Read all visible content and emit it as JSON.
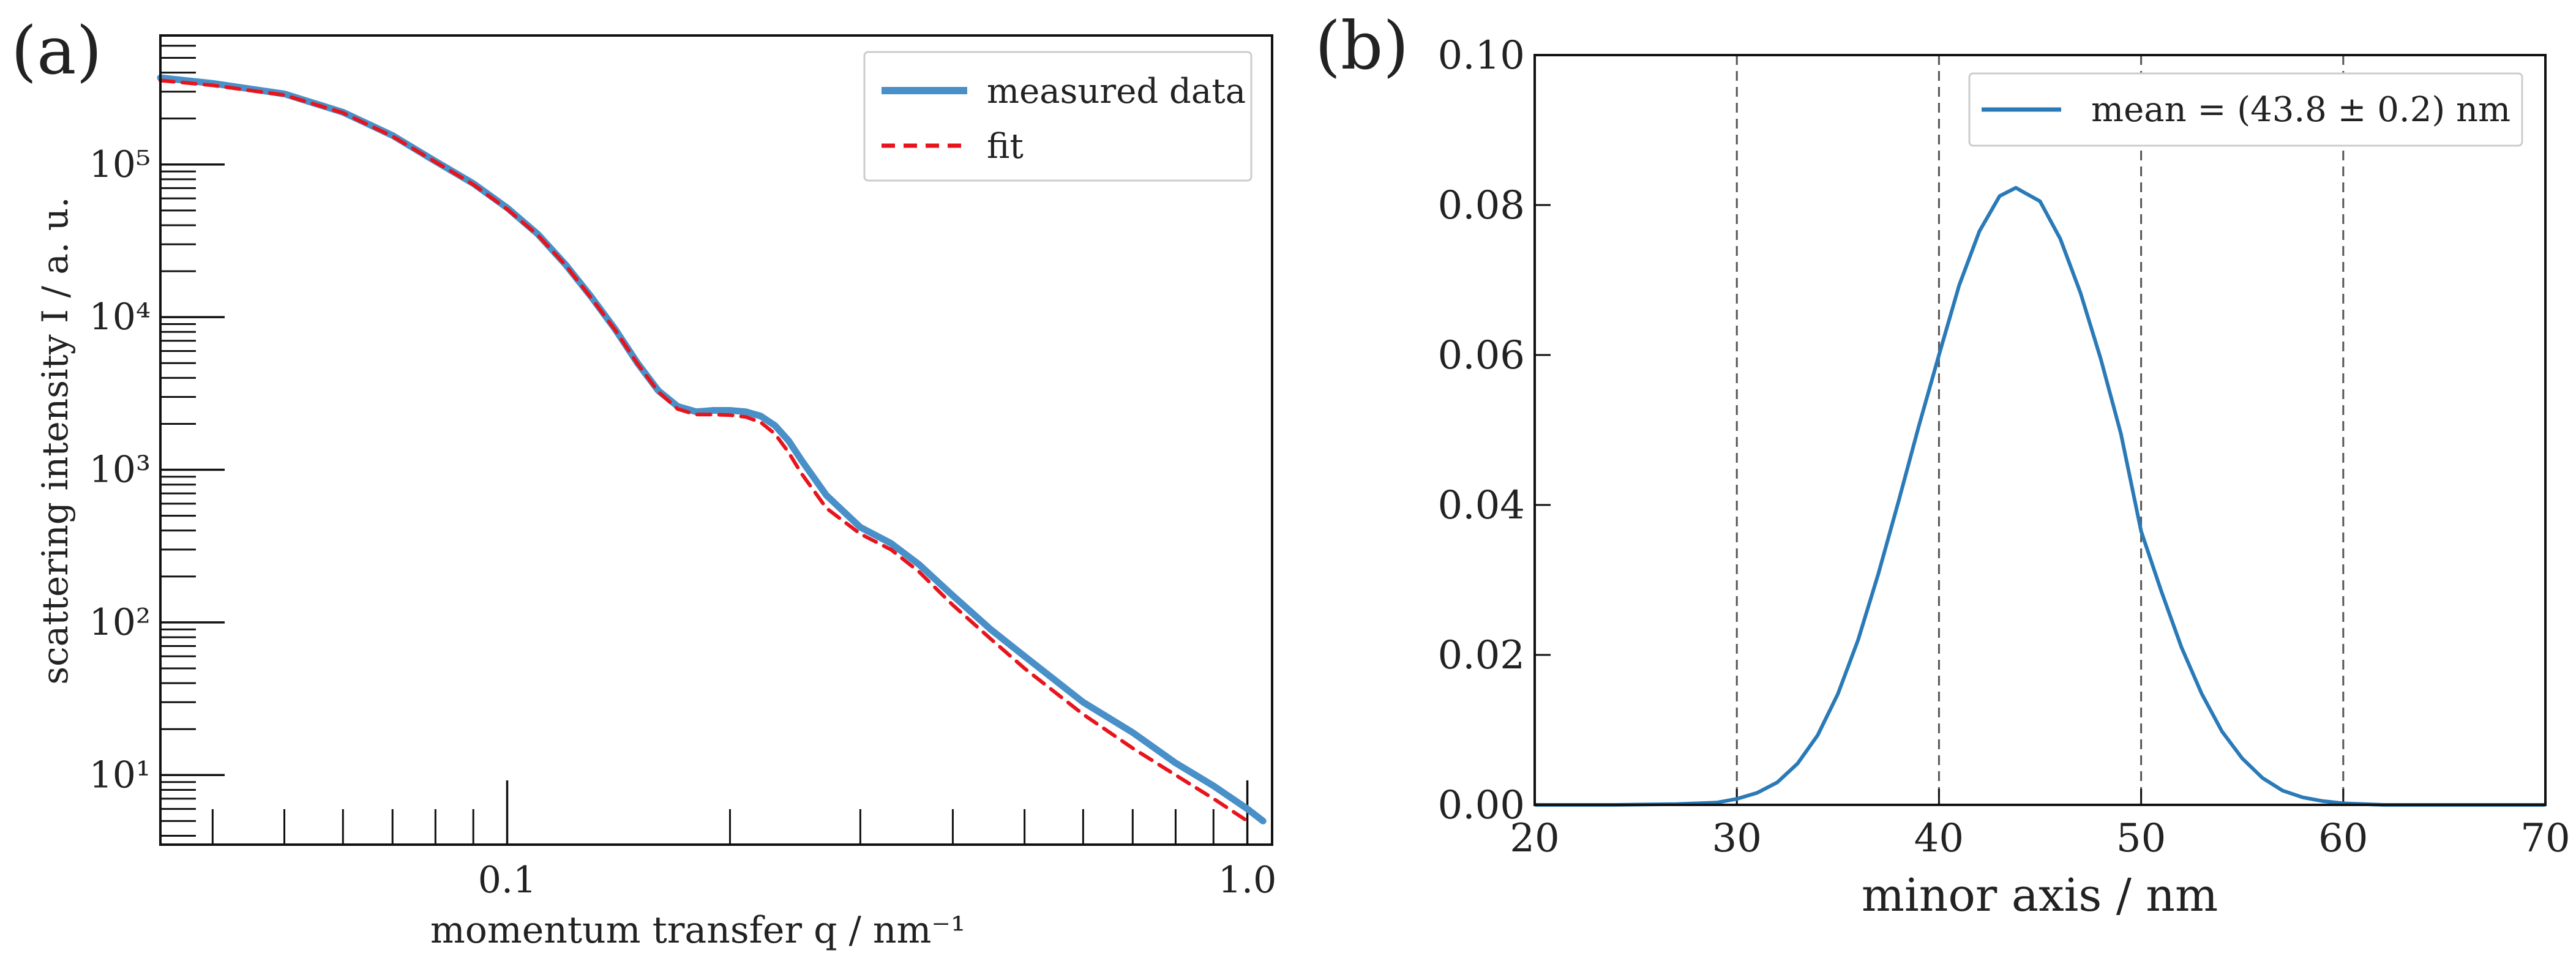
{
  "chart_data": [
    {
      "panel_label": "(a)",
      "type": "line",
      "xscale": "log",
      "yscale": "log",
      "xlim": [
        0.034,
        1.08
      ],
      "ylim": [
        3.5,
        700000
      ],
      "xlabel": "momentum transfer q / nm⁻¹",
      "ylabel": "scattering intensity I / a. u.",
      "xticks": [
        {
          "value": 0.1,
          "label": "0.1"
        },
        {
          "value": 1.0,
          "label": "1.0"
        }
      ],
      "yticks": [
        {
          "value": 10,
          "label": "10¹"
        },
        {
          "value": 100,
          "label": "10²"
        },
        {
          "value": 1000,
          "label": "10³"
        },
        {
          "value": 10000,
          "label": "10⁴"
        },
        {
          "value": 100000,
          "label": "10⁵"
        }
      ],
      "legend_position": "top-right",
      "series": [
        {
          "name": "measured data",
          "style": "solid",
          "color": "#4a90c8",
          "x": [
            0.034,
            0.04,
            0.05,
            0.06,
            0.07,
            0.08,
            0.09,
            0.1,
            0.11,
            0.12,
            0.13,
            0.14,
            0.15,
            0.16,
            0.17,
            0.18,
            0.19,
            0.2,
            0.21,
            0.22,
            0.23,
            0.24,
            0.25,
            0.27,
            0.3,
            0.33,
            0.36,
            0.4,
            0.45,
            0.5,
            0.6,
            0.7,
            0.8,
            0.9,
            1.0,
            1.05
          ],
          "y": [
            370000,
            340000,
            290000,
            220000,
            155000,
            105000,
            75000,
            52000,
            35000,
            22000,
            13500,
            8300,
            5000,
            3300,
            2600,
            2400,
            2450,
            2450,
            2400,
            2250,
            1950,
            1550,
            1150,
            680,
            420,
            330,
            240,
            150,
            90,
            60,
            30,
            19,
            12,
            8.5,
            6,
            5
          ]
        },
        {
          "name": "fit",
          "style": "dashed",
          "color": "#e8141c",
          "x": [
            0.034,
            0.04,
            0.05,
            0.06,
            0.07,
            0.08,
            0.09,
            0.1,
            0.11,
            0.12,
            0.13,
            0.14,
            0.15,
            0.16,
            0.17,
            0.18,
            0.19,
            0.2,
            0.21,
            0.22,
            0.23,
            0.24,
            0.25,
            0.27,
            0.3,
            0.33,
            0.36,
            0.4,
            0.45,
            0.5,
            0.6,
            0.7,
            0.8,
            0.9,
            1.0
          ],
          "y": [
            355000,
            330000,
            285000,
            218000,
            153000,
            104000,
            74000,
            51000,
            34500,
            21800,
            13300,
            8200,
            4950,
            3250,
            2500,
            2300,
            2300,
            2280,
            2220,
            2050,
            1720,
            1300,
            940,
            560,
            380,
            300,
            215,
            130,
            78,
            50,
            25,
            15,
            10,
            7,
            5
          ]
        }
      ]
    },
    {
      "panel_label": "(b)",
      "type": "line",
      "xlim": [
        20,
        70
      ],
      "ylim": [
        0,
        0.1
      ],
      "xlabel": "minor axis / nm",
      "ylabel": "",
      "xticks": [
        {
          "value": 20,
          "label": "20"
        },
        {
          "value": 30,
          "label": "30"
        },
        {
          "value": 40,
          "label": "40"
        },
        {
          "value": 50,
          "label": "50"
        },
        {
          "value": 60,
          "label": "60"
        },
        {
          "value": 70,
          "label": "70"
        }
      ],
      "yticks": [
        {
          "value": 0,
          "label": "0.00"
        },
        {
          "value": 0.02,
          "label": "0.02"
        },
        {
          "value": 0.04,
          "label": "0.04"
        },
        {
          "value": 0.06,
          "label": "0.06"
        },
        {
          "value": 0.08,
          "label": "0.08"
        },
        {
          "value": 0.1,
          "label": "0.10"
        }
      ],
      "vlines": [
        30,
        40,
        50,
        60
      ],
      "legend_position": "top-right",
      "series": [
        {
          "name": "mean = (43.8 ± 0.2) nm",
          "style": "solid",
          "color": "#2a7ab8",
          "x": [
            20,
            24,
            27,
            29,
            30,
            31,
            32,
            33,
            34,
            35,
            36,
            37,
            38,
            39,
            40,
            41,
            42,
            43,
            43.8,
            45,
            46,
            47,
            48,
            49,
            50,
            51,
            52,
            53,
            54,
            55,
            56,
            57,
            58,
            59,
            60,
            62,
            65,
            70
          ],
          "y": [
            0.0,
            0.0,
            0.0001,
            0.0003,
            0.0008,
            0.0016,
            0.003,
            0.0055,
            0.0093,
            0.0148,
            0.022,
            0.0308,
            0.0405,
            0.0505,
            0.06,
            0.0693,
            0.0765,
            0.0812,
            0.0823,
            0.0805,
            0.0755,
            0.0683,
            0.0595,
            0.0495,
            0.0365,
            0.0285,
            0.021,
            0.0148,
            0.0098,
            0.0062,
            0.0036,
            0.0019,
            0.001,
            0.0005,
            0.0002,
            0.0,
            0.0,
            0.0
          ]
        }
      ]
    }
  ]
}
